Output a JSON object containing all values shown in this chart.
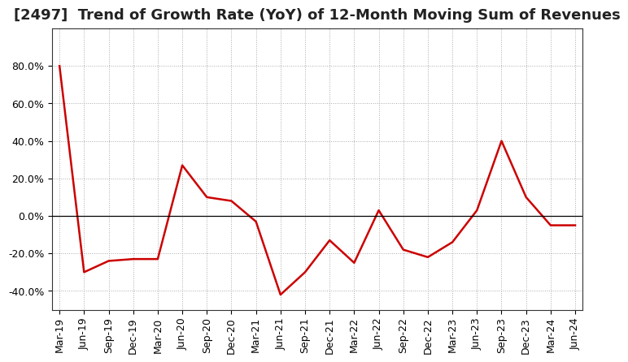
{
  "title": "[2497]  Trend of Growth Rate (YoY) of 12-Month Moving Sum of Revenues",
  "x_labels": [
    "Mar-19",
    "Jun-19",
    "Sep-19",
    "Dec-19",
    "Mar-20",
    "Jun-20",
    "Sep-20",
    "Dec-20",
    "Mar-21",
    "Jun-21",
    "Sep-21",
    "Dec-21",
    "Mar-22",
    "Jun-22",
    "Sep-22",
    "Dec-22",
    "Mar-23",
    "Jun-23",
    "Sep-23",
    "Dec-23",
    "Mar-24",
    "Jun-24"
  ],
  "y_values": [
    80.0,
    -30.0,
    -24.0,
    -23.0,
    -23.0,
    27.0,
    10.0,
    8.0,
    -3.0,
    -42.0,
    -30.0,
    -13.0,
    -25.0,
    3.0,
    -18.0,
    -22.0,
    -14.0,
    3.0,
    40.0,
    10.0,
    -5.0,
    -5.0
  ],
  "line_color": "#cc0000",
  "background_color": "#ffffff",
  "plot_bg_color": "#ffffff",
  "ylim": [
    -50,
    100
  ],
  "yticks": [
    -40.0,
    -20.0,
    0.0,
    20.0,
    40.0,
    60.0,
    80.0
  ],
  "grid_color": "#aaaaaa",
  "title_fontsize": 13,
  "tick_fontsize": 9,
  "line_width": 1.8
}
